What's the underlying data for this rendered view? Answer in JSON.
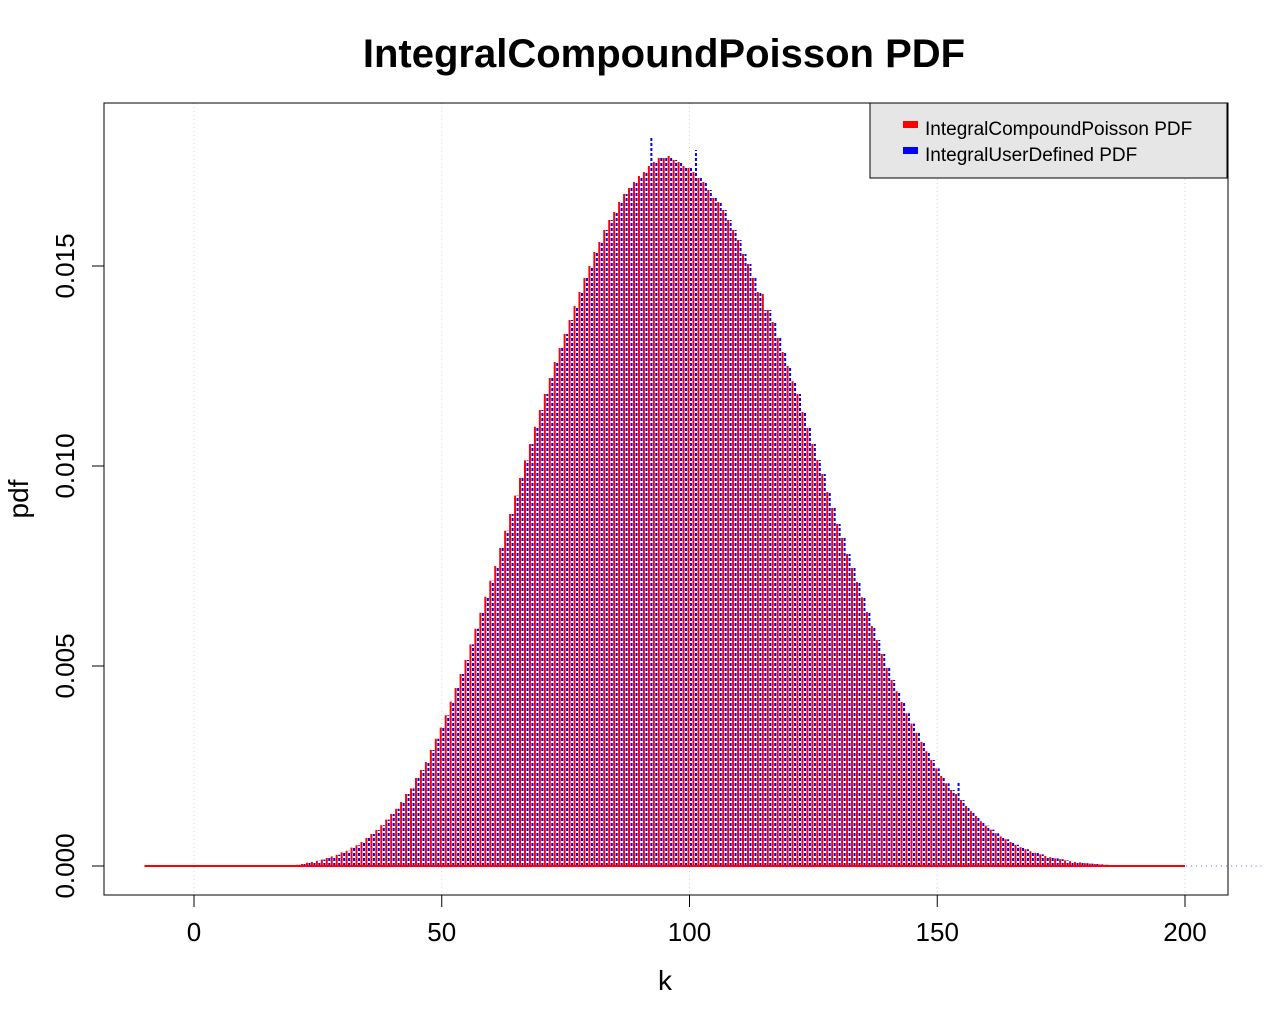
{
  "chart_data": {
    "type": "bar",
    "title": "IntegralCompoundPoisson PDF",
    "xlabel": "k",
    "ylabel": "pdf",
    "xlim": [
      -10,
      200
    ],
    "ylim": [
      0,
      0.018
    ],
    "x_ticks": [
      0,
      50,
      100,
      150,
      200
    ],
    "y_ticks": [
      0.0,
      0.005,
      0.01,
      0.015
    ],
    "x_tick_labels": [
      "0",
      "50",
      "100",
      "150",
      "200"
    ],
    "y_tick_labels": [
      "0.000",
      "0.005",
      "0.010",
      "0.015"
    ],
    "grid": true,
    "legend_position": "top-right",
    "colors": {
      "series_1": "#ff0000",
      "series_2": "#0000ff",
      "legend_bg": "#e6e6e6",
      "grid": "#d3d3d3"
    },
    "x_start": -10,
    "x_end": 200,
    "series": [
      {
        "name": "IntegralCompoundPoisson PDF",
        "values": [
          0,
          0,
          0,
          0,
          0,
          0,
          0,
          0,
          0,
          0,
          0,
          0,
          0,
          0,
          0,
          0,
          0,
          0,
          0,
          0,
          0,
          0,
          0,
          0,
          0,
          0,
          0,
          0,
          0,
          1e-05,
          2e-05,
          3e-05,
          5e-05,
          8e-05,
          0.0001,
          0.00013,
          0.00016,
          0.0002,
          0.00024,
          0.00028,
          0.00034,
          0.00038,
          0.00046,
          0.00052,
          0.0006,
          0.0007,
          0.0008,
          0.0009,
          0.00102,
          0.00116,
          0.0013,
          0.00143,
          0.0016,
          0.0018,
          0.00194,
          0.0022,
          0.0024,
          0.0026,
          0.0029,
          0.00318,
          0.00346,
          0.00377,
          0.00411,
          0.00445,
          0.0048,
          0.00515,
          0.00554,
          0.00593,
          0.00633,
          0.00673,
          0.00713,
          0.0075,
          0.00795,
          0.00838,
          0.0088,
          0.00926,
          0.0097,
          0.01014,
          0.01055,
          0.01098,
          0.0114,
          0.0118,
          0.0122,
          0.0126,
          0.01295,
          0.0133,
          0.01365,
          0.014,
          0.01435,
          0.0147,
          0.015,
          0.01535,
          0.0156,
          0.0159,
          0.01615,
          0.01635,
          0.0166,
          0.0168,
          0.01695,
          0.0171,
          0.01725,
          0.01735,
          0.0175,
          0.0176,
          0.0177,
          0.0177,
          0.01775,
          0.01765,
          0.0176,
          0.0175,
          0.01745,
          0.01735,
          0.0172,
          0.0171,
          0.0169,
          0.0167,
          0.0166,
          0.0164,
          0.01615,
          0.0159,
          0.01565,
          0.0153,
          0.01505,
          0.0147,
          0.01435,
          0.0143,
          0.0139,
          0.0136,
          0.0132,
          0.01285,
          0.0125,
          0.01212,
          0.0118,
          0.01135,
          0.01095,
          0.01055,
          0.01015,
          0.0098,
          0.00935,
          0.00895,
          0.00855,
          0.0082,
          0.0078,
          0.00745,
          0.0071,
          0.00672,
          0.00635,
          0.006,
          0.00565,
          0.0053,
          0.00495,
          0.00465,
          0.00437,
          0.0041,
          0.00382,
          0.00356,
          0.00333,
          0.0031,
          0.00287,
          0.00265,
          0.00244,
          0.00225,
          0.00207,
          0.0019,
          0.0018,
          0.00165,
          0.0015,
          0.00137,
          0.00125,
          0.00112,
          0.00101,
          0.00091,
          0.00082,
          0.00074,
          0.00067,
          0.0006,
          0.00053,
          0.00047,
          0.00042,
          0.00037,
          0.00033,
          0.00029,
          0.00025,
          0.00022,
          0.00019,
          0.00017,
          0.00014,
          0.00012,
          0.0001,
          9e-05,
          7e-05,
          6e-05,
          5e-05,
          4e-05,
          3e-05,
          2e-05,
          2e-05,
          1e-05,
          1e-05,
          1e-05,
          0,
          0,
          0,
          0,
          0,
          0,
          0,
          0,
          0,
          0,
          0,
          0,
          0,
          0,
          0,
          0,
          0,
          0,
          0,
          0,
          0,
          0,
          0,
          0,
          0,
          0
        ]
      },
      {
        "name": "IntegralUserDefined PDF",
        "values": [
          0,
          0,
          0,
          0,
          0,
          0,
          0,
          0,
          0,
          0,
          0,
          0,
          0,
          0,
          0,
          0,
          0,
          0,
          0,
          0,
          0,
          0,
          0,
          0,
          0,
          0,
          0,
          0,
          0,
          1e-05,
          2e-05,
          3e-05,
          5e-05,
          8e-05,
          0.0001,
          0.00013,
          0.00016,
          0.0002,
          0.00024,
          0.00028,
          0.00034,
          0.00038,
          0.00046,
          0.00052,
          0.0006,
          0.0007,
          0.0008,
          0.0009,
          0.00102,
          0.00116,
          0.0013,
          0.00143,
          0.0016,
          0.0018,
          0.00194,
          0.0022,
          0.0024,
          0.0026,
          0.0029,
          0.00318,
          0.00346,
          0.00377,
          0.00411,
          0.00445,
          0.0048,
          0.00515,
          0.00554,
          0.00593,
          0.00633,
          0.00673,
          0.00713,
          0.0075,
          0.00795,
          0.00838,
          0.0088,
          0.00926,
          0.0097,
          0.01014,
          0.01055,
          0.01098,
          0.0114,
          0.0118,
          0.0122,
          0.0126,
          0.01295,
          0.0133,
          0.01365,
          0.014,
          0.01435,
          0.0147,
          0.015,
          0.01535,
          0.0156,
          0.0159,
          0.01615,
          0.01635,
          0.0166,
          0.0168,
          0.01695,
          0.0171,
          0.01725,
          0.01735,
          0.0182,
          0.0176,
          0.0177,
          0.0177,
          0.01775,
          0.01765,
          0.0176,
          0.0175,
          0.01745,
          0.0179,
          0.0172,
          0.0171,
          0.0169,
          0.0167,
          0.0166,
          0.0164,
          0.01615,
          0.0159,
          0.01565,
          0.0153,
          0.01505,
          0.0147,
          0.01435,
          0.0139,
          0.0139,
          0.0136,
          0.0132,
          0.01285,
          0.0125,
          0.01212,
          0.0118,
          0.01135,
          0.01095,
          0.01055,
          0.01015,
          0.0098,
          0.00935,
          0.00895,
          0.00855,
          0.0082,
          0.0078,
          0.00745,
          0.0071,
          0.00672,
          0.00635,
          0.006,
          0.00565,
          0.0053,
          0.00495,
          0.00465,
          0.00437,
          0.0041,
          0.00382,
          0.00356,
          0.00333,
          0.0031,
          0.00287,
          0.00265,
          0.00244,
          0.00225,
          0.00207,
          0.0019,
          0.0021,
          0.00165,
          0.0015,
          0.00137,
          0.00125,
          0.00112,
          0.00101,
          0.00091,
          0.00082,
          0.00074,
          0.00067,
          0.0006,
          0.00053,
          0.00047,
          0.00042,
          0.00037,
          0.00033,
          0.00029,
          0.00025,
          0.00022,
          0.00019,
          0.00017,
          0.00014,
          0.00012,
          0.0001,
          9e-05,
          7e-05,
          6e-05,
          5e-05,
          4e-05,
          3e-05,
          2e-05,
          2e-05,
          1e-05,
          1e-05,
          1e-05,
          0,
          0,
          0,
          0,
          0,
          0,
          0,
          0,
          0,
          0,
          0,
          0,
          0,
          0,
          0,
          0,
          0,
          0,
          0,
          0,
          0,
          0,
          0,
          0,
          0,
          0
        ]
      }
    ]
  }
}
